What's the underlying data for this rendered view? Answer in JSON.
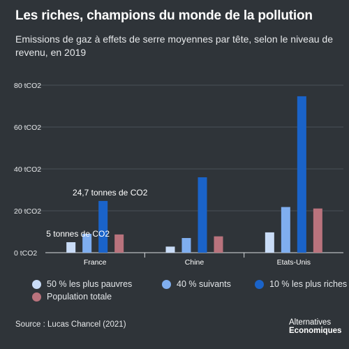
{
  "title": "Les riches, champions du monde de la pollution",
  "subtitle": "Emissions de gaz à effets de serre moyennes par tête, selon le niveau de revenu, en 2019",
  "source": "Source :  Lucas Chancel (2021)",
  "logo": {
    "line1": "Alternatives",
    "line2": "Economiques"
  },
  "colors": {
    "background": "#2f3439",
    "series": [
      "#c9dcf7",
      "#7faeef",
      "#1a63c9",
      "#b9737d"
    ]
  },
  "legend": [
    {
      "label": "50 % les plus pauvres",
      "color": "#c9dcf7"
    },
    {
      "label": "40 % suivants",
      "color": "#7faeef"
    },
    {
      "label": "10 % les plus riches",
      "color": "#1a63c9"
    },
    {
      "label": "Population totale",
      "color": "#b9737d"
    }
  ],
  "chart_data": {
    "type": "bar",
    "categories": [
      "France",
      "Chine",
      "Etats-Unis"
    ],
    "series": [
      {
        "name": "50 % les plus pauvres",
        "values": [
          5.0,
          2.9,
          9.7
        ]
      },
      {
        "name": "40 % suivants",
        "values": [
          9.0,
          7.0,
          21.8
        ]
      },
      {
        "name": "10 % les plus riches",
        "values": [
          24.7,
          36.0,
          74.7
        ]
      },
      {
        "name": "Population totale",
        "values": [
          8.7,
          7.8,
          21.1
        ]
      }
    ],
    "ylim": [
      0,
      80
    ],
    "yticks": [
      0,
      20,
      40,
      60,
      80
    ],
    "ytick_labels": [
      "0 tCO2",
      "20 tCO2",
      "40 tCO2",
      "60 tCO2",
      "80 tCO2"
    ],
    "grid": true,
    "annotations": [
      {
        "text": "24,7 tonnes de CO2",
        "category": "France",
        "series": "10 % les plus riches"
      },
      {
        "text": "5 tonnes de CO2",
        "category": "France",
        "series": "50 % les plus pauvres"
      }
    ]
  }
}
